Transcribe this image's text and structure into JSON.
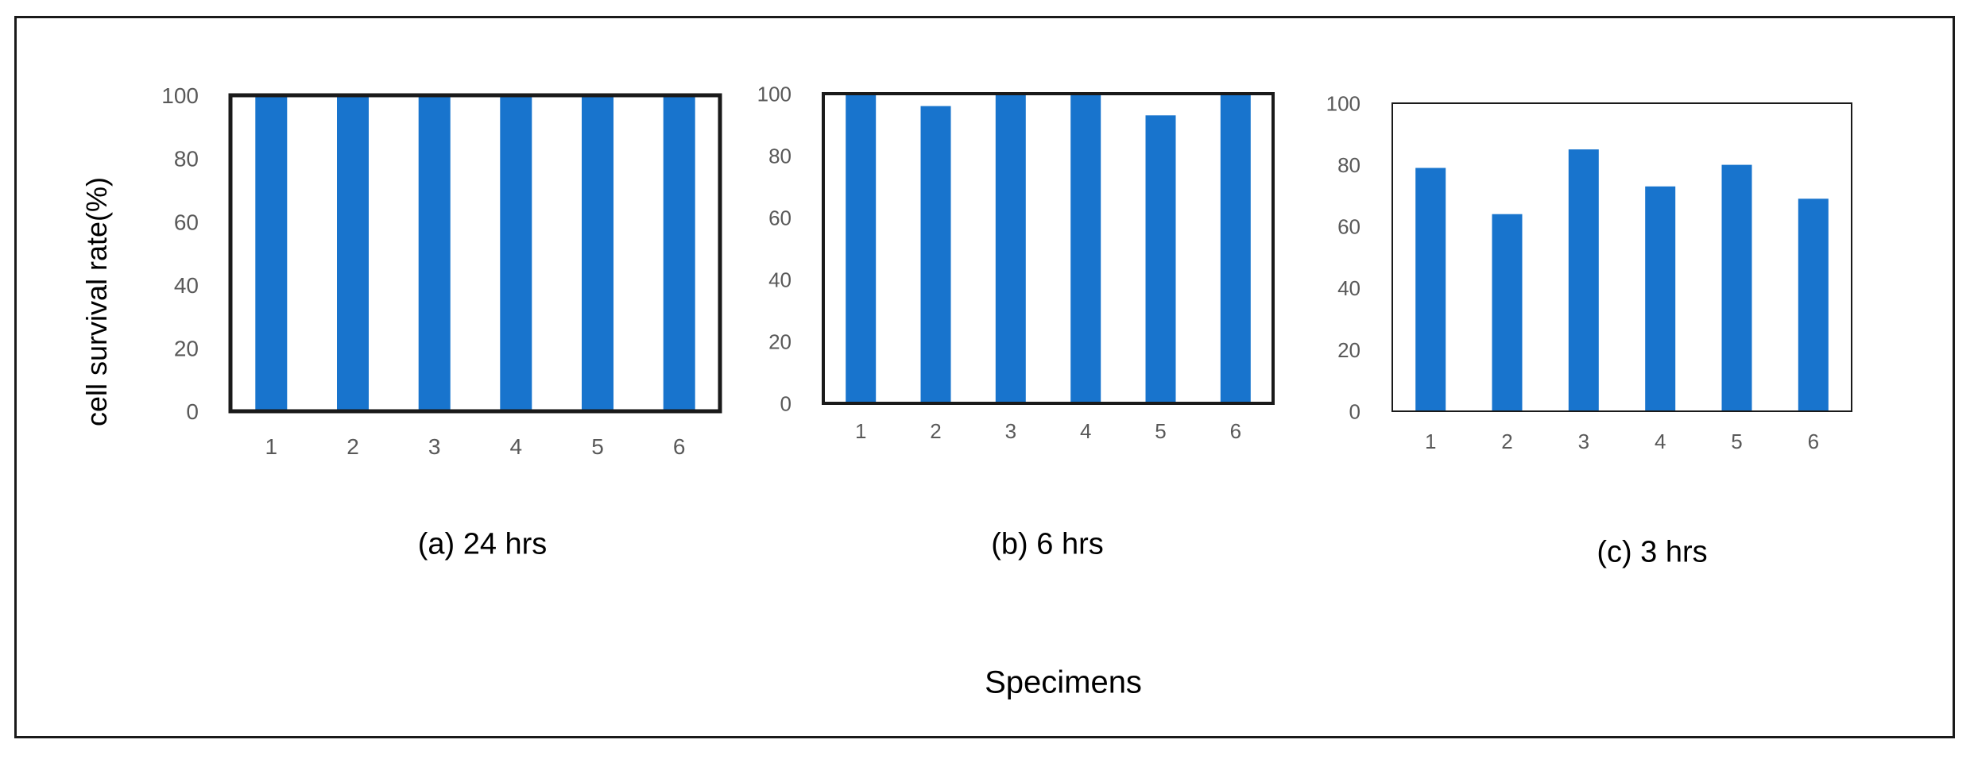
{
  "figure": {
    "ylabel": "cell survival rate(%)",
    "xlabel": "Specimens",
    "bar_color": "#1874CD",
    "frame_color": "#1a1a1a"
  },
  "chart_data": [
    {
      "type": "bar",
      "caption": "(a) 24 hrs",
      "categories": [
        "1",
        "2",
        "3",
        "4",
        "5",
        "6"
      ],
      "values": [
        100,
        100,
        100,
        100,
        100,
        100
      ],
      "ylim": [
        0,
        100
      ],
      "yticks": [
        "0",
        "20",
        "40",
        "60",
        "80",
        "100"
      ],
      "grid": false,
      "border": "thick"
    },
    {
      "type": "bar",
      "caption": "(b) 6 hrs",
      "categories": [
        "1",
        "2",
        "3",
        "4",
        "5",
        "6"
      ],
      "values": [
        100,
        96,
        100,
        100,
        93,
        100
      ],
      "ylim": [
        0,
        100
      ],
      "yticks": [
        "0",
        "20",
        "40",
        "60",
        "80",
        "100"
      ],
      "grid": false,
      "border": "thick"
    },
    {
      "type": "bar",
      "caption": "(c) 3 hrs",
      "categories": [
        "1",
        "2",
        "3",
        "4",
        "5",
        "6"
      ],
      "values": [
        79,
        64,
        85,
        73,
        80,
        69
      ],
      "ylim": [
        0,
        100
      ],
      "yticks": [
        "0",
        "20",
        "40",
        "60",
        "80",
        "100"
      ],
      "grid": false,
      "border": "thin"
    }
  ]
}
